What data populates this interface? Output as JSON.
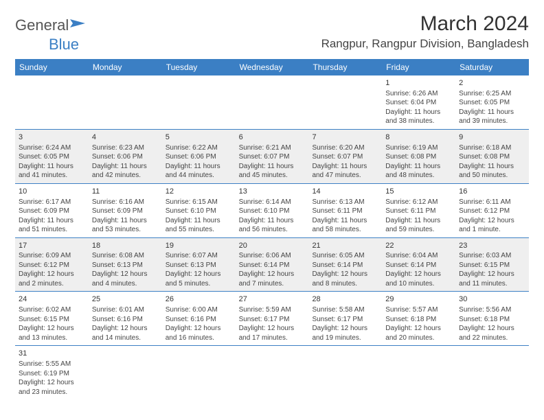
{
  "header": {
    "logo_text_a": "General",
    "logo_text_b": "Blue",
    "month_title": "March 2024",
    "location": "Rangpur, Rangpur Division, Bangladesh"
  },
  "colors": {
    "accent": "#3b7fc4",
    "shade": "#efefef",
    "text": "#444444"
  },
  "weekdays": [
    "Sunday",
    "Monday",
    "Tuesday",
    "Wednesday",
    "Thursday",
    "Friday",
    "Saturday"
  ],
  "weeks": [
    [
      {
        "day": "",
        "sunrise": "",
        "sunset": "",
        "daylight": ""
      },
      {
        "day": "",
        "sunrise": "",
        "sunset": "",
        "daylight": ""
      },
      {
        "day": "",
        "sunrise": "",
        "sunset": "",
        "daylight": ""
      },
      {
        "day": "",
        "sunrise": "",
        "sunset": "",
        "daylight": ""
      },
      {
        "day": "",
        "sunrise": "",
        "sunset": "",
        "daylight": ""
      },
      {
        "day": "1",
        "sunrise": "Sunrise: 6:26 AM",
        "sunset": "Sunset: 6:04 PM",
        "daylight": "Daylight: 11 hours and 38 minutes."
      },
      {
        "day": "2",
        "sunrise": "Sunrise: 6:25 AM",
        "sunset": "Sunset: 6:05 PM",
        "daylight": "Daylight: 11 hours and 39 minutes."
      }
    ],
    [
      {
        "day": "3",
        "sunrise": "Sunrise: 6:24 AM",
        "sunset": "Sunset: 6:05 PM",
        "daylight": "Daylight: 11 hours and 41 minutes."
      },
      {
        "day": "4",
        "sunrise": "Sunrise: 6:23 AM",
        "sunset": "Sunset: 6:06 PM",
        "daylight": "Daylight: 11 hours and 42 minutes."
      },
      {
        "day": "5",
        "sunrise": "Sunrise: 6:22 AM",
        "sunset": "Sunset: 6:06 PM",
        "daylight": "Daylight: 11 hours and 44 minutes."
      },
      {
        "day": "6",
        "sunrise": "Sunrise: 6:21 AM",
        "sunset": "Sunset: 6:07 PM",
        "daylight": "Daylight: 11 hours and 45 minutes."
      },
      {
        "day": "7",
        "sunrise": "Sunrise: 6:20 AM",
        "sunset": "Sunset: 6:07 PM",
        "daylight": "Daylight: 11 hours and 47 minutes."
      },
      {
        "day": "8",
        "sunrise": "Sunrise: 6:19 AM",
        "sunset": "Sunset: 6:08 PM",
        "daylight": "Daylight: 11 hours and 48 minutes."
      },
      {
        "day": "9",
        "sunrise": "Sunrise: 6:18 AM",
        "sunset": "Sunset: 6:08 PM",
        "daylight": "Daylight: 11 hours and 50 minutes."
      }
    ],
    [
      {
        "day": "10",
        "sunrise": "Sunrise: 6:17 AM",
        "sunset": "Sunset: 6:09 PM",
        "daylight": "Daylight: 11 hours and 51 minutes."
      },
      {
        "day": "11",
        "sunrise": "Sunrise: 6:16 AM",
        "sunset": "Sunset: 6:09 PM",
        "daylight": "Daylight: 11 hours and 53 minutes."
      },
      {
        "day": "12",
        "sunrise": "Sunrise: 6:15 AM",
        "sunset": "Sunset: 6:10 PM",
        "daylight": "Daylight: 11 hours and 55 minutes."
      },
      {
        "day": "13",
        "sunrise": "Sunrise: 6:14 AM",
        "sunset": "Sunset: 6:10 PM",
        "daylight": "Daylight: 11 hours and 56 minutes."
      },
      {
        "day": "14",
        "sunrise": "Sunrise: 6:13 AM",
        "sunset": "Sunset: 6:11 PM",
        "daylight": "Daylight: 11 hours and 58 minutes."
      },
      {
        "day": "15",
        "sunrise": "Sunrise: 6:12 AM",
        "sunset": "Sunset: 6:11 PM",
        "daylight": "Daylight: 11 hours and 59 minutes."
      },
      {
        "day": "16",
        "sunrise": "Sunrise: 6:11 AM",
        "sunset": "Sunset: 6:12 PM",
        "daylight": "Daylight: 12 hours and 1 minute."
      }
    ],
    [
      {
        "day": "17",
        "sunrise": "Sunrise: 6:09 AM",
        "sunset": "Sunset: 6:12 PM",
        "daylight": "Daylight: 12 hours and 2 minutes."
      },
      {
        "day": "18",
        "sunrise": "Sunrise: 6:08 AM",
        "sunset": "Sunset: 6:13 PM",
        "daylight": "Daylight: 12 hours and 4 minutes."
      },
      {
        "day": "19",
        "sunrise": "Sunrise: 6:07 AM",
        "sunset": "Sunset: 6:13 PM",
        "daylight": "Daylight: 12 hours and 5 minutes."
      },
      {
        "day": "20",
        "sunrise": "Sunrise: 6:06 AM",
        "sunset": "Sunset: 6:14 PM",
        "daylight": "Daylight: 12 hours and 7 minutes."
      },
      {
        "day": "21",
        "sunrise": "Sunrise: 6:05 AM",
        "sunset": "Sunset: 6:14 PM",
        "daylight": "Daylight: 12 hours and 8 minutes."
      },
      {
        "day": "22",
        "sunrise": "Sunrise: 6:04 AM",
        "sunset": "Sunset: 6:14 PM",
        "daylight": "Daylight: 12 hours and 10 minutes."
      },
      {
        "day": "23",
        "sunrise": "Sunrise: 6:03 AM",
        "sunset": "Sunset: 6:15 PM",
        "daylight": "Daylight: 12 hours and 11 minutes."
      }
    ],
    [
      {
        "day": "24",
        "sunrise": "Sunrise: 6:02 AM",
        "sunset": "Sunset: 6:15 PM",
        "daylight": "Daylight: 12 hours and 13 minutes."
      },
      {
        "day": "25",
        "sunrise": "Sunrise: 6:01 AM",
        "sunset": "Sunset: 6:16 PM",
        "daylight": "Daylight: 12 hours and 14 minutes."
      },
      {
        "day": "26",
        "sunrise": "Sunrise: 6:00 AM",
        "sunset": "Sunset: 6:16 PM",
        "daylight": "Daylight: 12 hours and 16 minutes."
      },
      {
        "day": "27",
        "sunrise": "Sunrise: 5:59 AM",
        "sunset": "Sunset: 6:17 PM",
        "daylight": "Daylight: 12 hours and 17 minutes."
      },
      {
        "day": "28",
        "sunrise": "Sunrise: 5:58 AM",
        "sunset": "Sunset: 6:17 PM",
        "daylight": "Daylight: 12 hours and 19 minutes."
      },
      {
        "day": "29",
        "sunrise": "Sunrise: 5:57 AM",
        "sunset": "Sunset: 6:18 PM",
        "daylight": "Daylight: 12 hours and 20 minutes."
      },
      {
        "day": "30",
        "sunrise": "Sunrise: 5:56 AM",
        "sunset": "Sunset: 6:18 PM",
        "daylight": "Daylight: 12 hours and 22 minutes."
      }
    ],
    [
      {
        "day": "31",
        "sunrise": "Sunrise: 5:55 AM",
        "sunset": "Sunset: 6:19 PM",
        "daylight": "Daylight: 12 hours and 23 minutes."
      },
      {
        "day": "",
        "sunrise": "",
        "sunset": "",
        "daylight": ""
      },
      {
        "day": "",
        "sunrise": "",
        "sunset": "",
        "daylight": ""
      },
      {
        "day": "",
        "sunrise": "",
        "sunset": "",
        "daylight": ""
      },
      {
        "day": "",
        "sunrise": "",
        "sunset": "",
        "daylight": ""
      },
      {
        "day": "",
        "sunrise": "",
        "sunset": "",
        "daylight": ""
      },
      {
        "day": "",
        "sunrise": "",
        "sunset": "",
        "daylight": ""
      }
    ]
  ]
}
